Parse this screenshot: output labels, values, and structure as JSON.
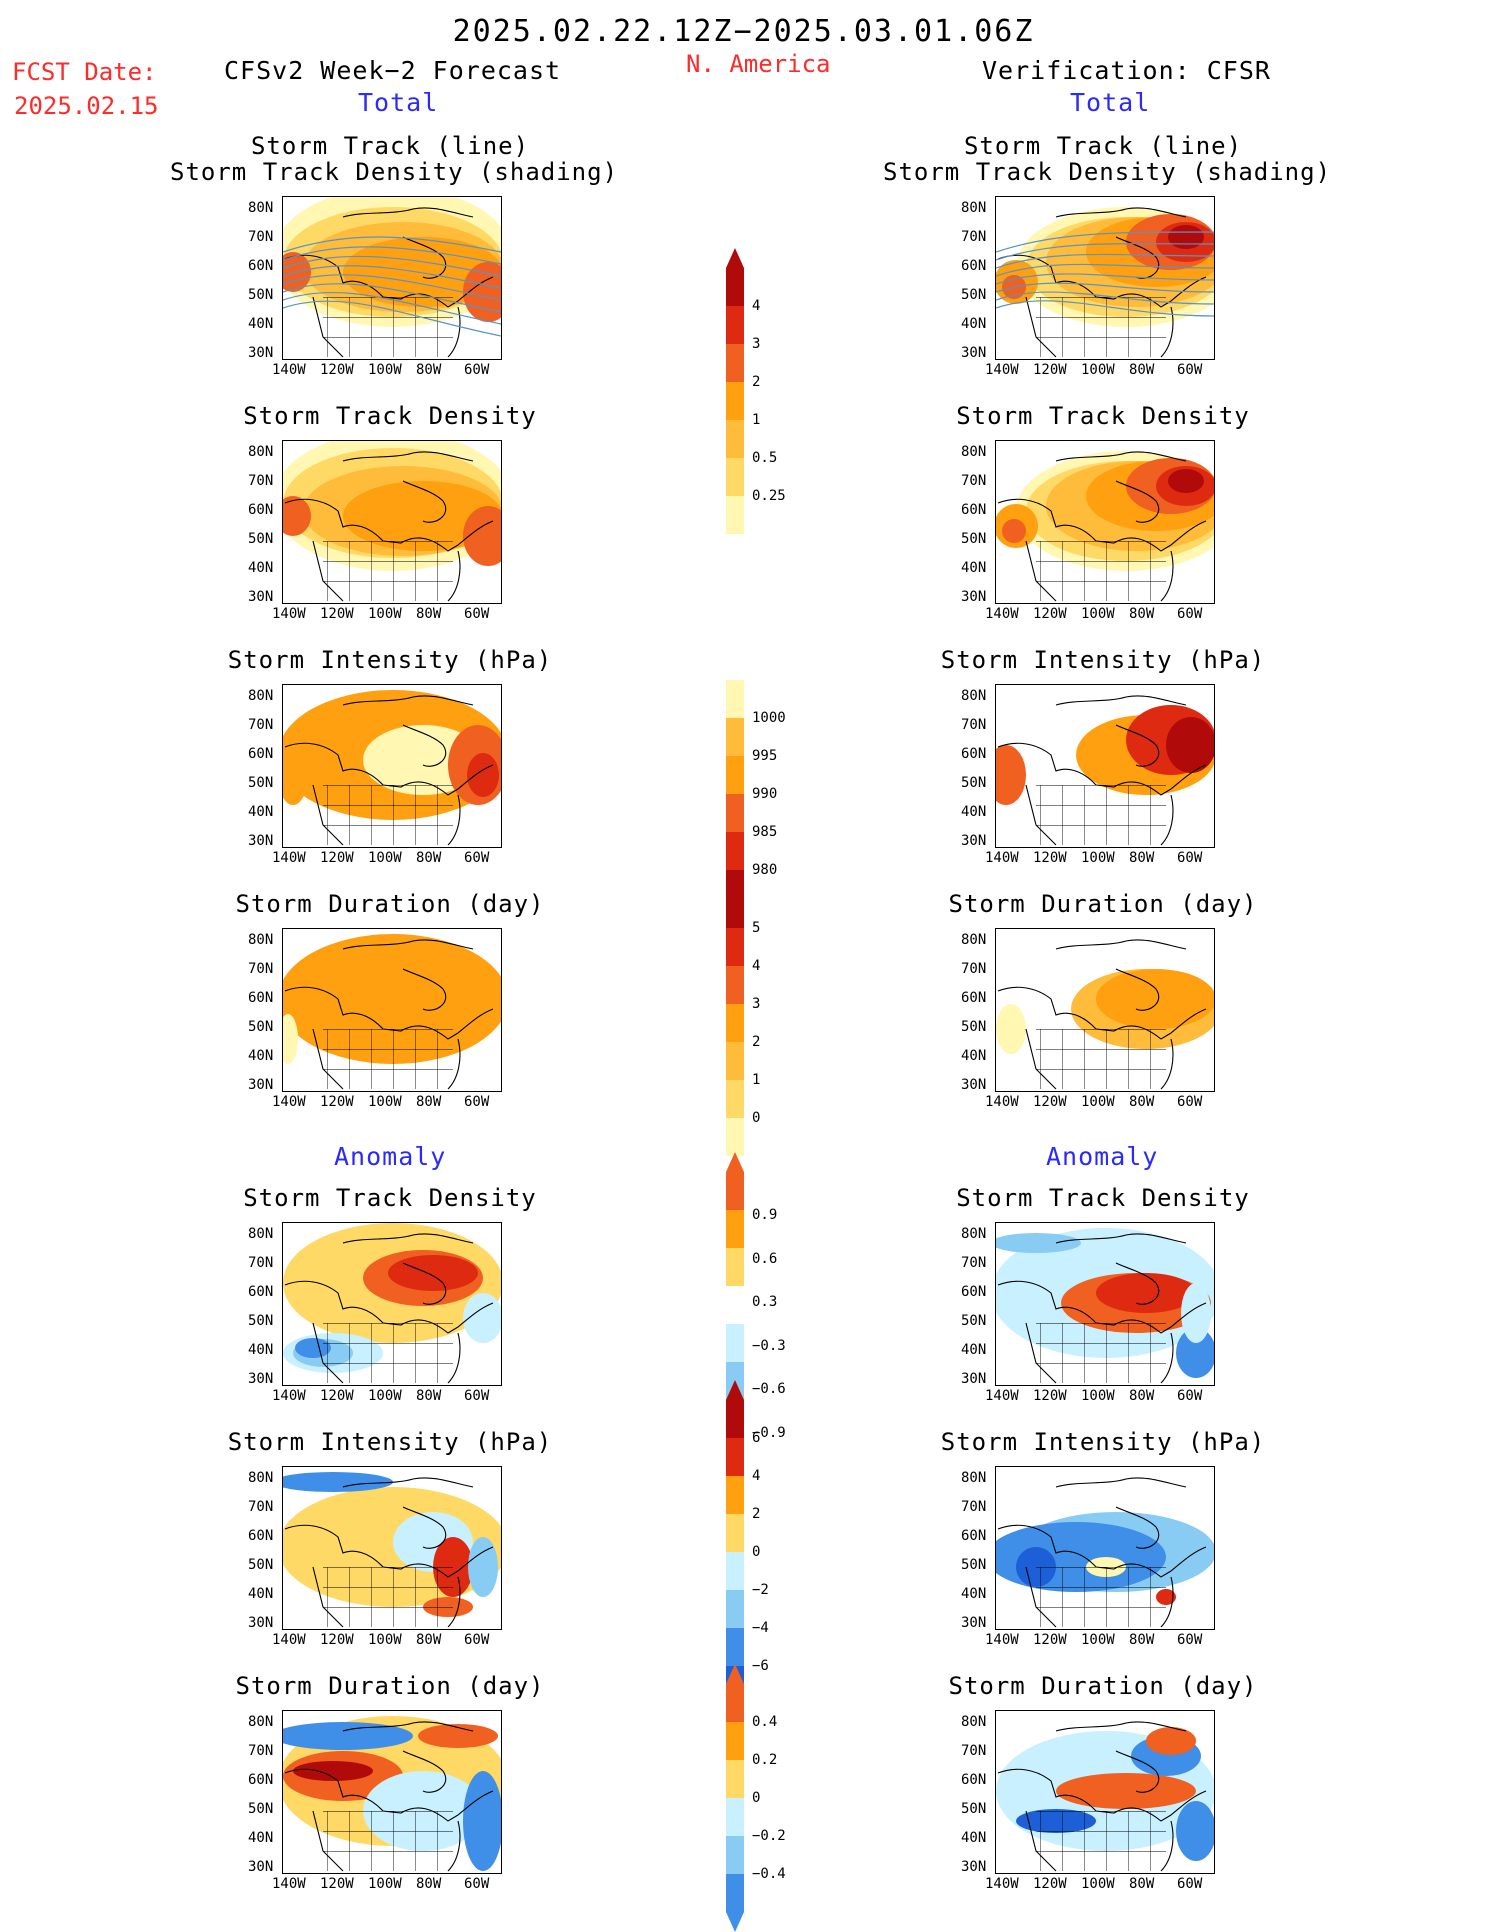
{
  "header": {
    "valid_period": "2025.02.22.12Z−2025.03.01.06Z",
    "region": "N. America",
    "fcst_date_label": "FCST Date:",
    "fcst_date_value": "2025.02.15",
    "left_title": "CFSv2 Week−2 Forecast",
    "right_title": "Verification: CFSR",
    "total_left": "Total",
    "total_right": "Total",
    "anomaly_left": "Anomaly",
    "anomaly_right": "Anomaly"
  },
  "panel_titles": {
    "track_line": "Storm Track (line)",
    "track_shading": "Storm Track Density (shading)",
    "density": "Storm Track Density",
    "intensity": "Storm Intensity (hPa)",
    "duration": "Storm Duration (day)"
  },
  "axes": {
    "lat": [
      "80N",
      "70N",
      "60N",
      "50N",
      "40N",
      "30N"
    ],
    "lon": [
      "140W",
      "120W",
      "100W",
      "80W",
      "60W"
    ]
  },
  "colorbars": {
    "density_total": [
      "4",
      "3",
      "2",
      "1",
      "0.5",
      "0.25"
    ],
    "intensity_total": [
      "1000",
      "995",
      "990",
      "985",
      "980"
    ],
    "duration_total": [
      "5",
      "4",
      "3",
      "2",
      "1",
      "0"
    ],
    "density_anom": [
      "0.9",
      "0.6",
      "0.3",
      "−0.3",
      "−0.6",
      "−0.9"
    ],
    "intensity_anom": [
      "6",
      "4",
      "2",
      "0",
      "−2",
      "−4",
      "−6"
    ],
    "duration_anom": [
      "0.4",
      "0.2",
      "0",
      "−0.2",
      "−0.4"
    ]
  },
  "colors": {
    "pale_yellow": "#fff7b2",
    "yellow": "#ffd966",
    "light_orange": "#ffbb3a",
    "orange": "#ffa010",
    "red_orange": "#f06020",
    "red": "#dd2a10",
    "dark_red": "#b00a0a",
    "pale_blue": "#c8f0ff",
    "light_blue": "#88ccf4",
    "blue": "#3f8ee8",
    "dark_blue": "#1c5fd6",
    "track_line": "#5a93c8"
  }
}
